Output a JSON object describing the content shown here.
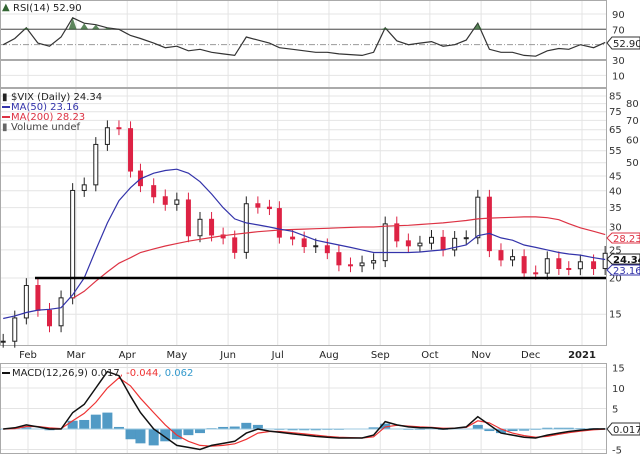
{
  "rsi_panel": {
    "label": "RSI(14)",
    "value": "52.90",
    "ticks": [
      90,
      70,
      30,
      10
    ],
    "overbought": 70,
    "oversold": 30
  },
  "price_panel": {
    "symbol": "$VIX (Daily)",
    "value": "24.34",
    "legend": [
      {
        "label": "MA(50) 23.16",
        "color": "#3333aa"
      },
      {
        "label": "MA(200) 28.23",
        "color": "#dd3344"
      },
      {
        "label": "Volume undef",
        "color": "#666666"
      }
    ],
    "ticks": [
      85,
      80,
      75,
      70,
      65,
      60,
      55,
      50,
      45,
      40,
      35,
      30,
      25,
      20,
      15
    ],
    "support_level": 20,
    "tags": {
      "ma200": "28.23",
      "close": "24.34",
      "ma50": "23.16"
    }
  },
  "macd_panel": {
    "label": "MACD(12,26,9)",
    "macd": "0.017",
    "signal": "-0.044",
    "hist": "0.062",
    "ticks": [
      15,
      10,
      5,
      -5
    ],
    "tag": "0.017"
  },
  "months": [
    {
      "label": "Feb",
      "date": "2020-02-01"
    },
    {
      "label": "Mar",
      "date": "2020-03-01"
    },
    {
      "label": "Apr",
      "date": "2020-04-01"
    },
    {
      "label": "May",
      "date": "2020-05-01"
    },
    {
      "label": "Jun",
      "date": "2020-06-01"
    },
    {
      "label": "Jul",
      "date": "2020-07-01"
    },
    {
      "label": "Aug",
      "date": "2020-08-01"
    },
    {
      "label": "Sep",
      "date": "2020-09-01"
    },
    {
      "label": "Oct",
      "date": "2020-10-01"
    },
    {
      "label": "Nov",
      "date": "2020-11-01"
    },
    {
      "label": "Dec",
      "date": "2020-12-01"
    },
    {
      "label": "2021",
      "date": "2021-01-01"
    }
  ],
  "colors": {
    "up": "#222222",
    "down": "#dd2244",
    "ma50": "#3333aa",
    "ma200": "#dd3344",
    "macd": "#111111",
    "signal": "#ee3333",
    "hist": "#3388bb",
    "rsi_fill": "#336633"
  },
  "chart_data": {
    "type": "line",
    "title": "$VIX (Daily)",
    "yscale": "log",
    "ylim": [
      11,
      88
    ],
    "grid": true,
    "x": [
      "2020-01-17",
      "2020-01-24",
      "2020-01-31",
      "2020-02-07",
      "2020-02-14",
      "2020-02-21",
      "2020-02-28",
      "2020-03-06",
      "2020-03-13",
      "2020-03-20",
      "2020-03-27",
      "2020-04-03",
      "2020-04-09",
      "2020-04-17",
      "2020-04-24",
      "2020-05-01",
      "2020-05-08",
      "2020-05-15",
      "2020-05-22",
      "2020-05-29",
      "2020-06-05",
      "2020-06-12",
      "2020-06-19",
      "2020-06-26",
      "2020-07-02",
      "2020-07-10",
      "2020-07-17",
      "2020-07-24",
      "2020-07-31",
      "2020-08-07",
      "2020-08-14",
      "2020-08-21",
      "2020-08-28",
      "2020-09-04",
      "2020-09-11",
      "2020-09-18",
      "2020-09-25",
      "2020-10-02",
      "2020-10-09",
      "2020-10-16",
      "2020-10-23",
      "2020-10-30",
      "2020-11-06",
      "2020-11-13",
      "2020-11-20",
      "2020-11-27",
      "2020-12-04",
      "2020-12-11",
      "2020-12-18",
      "2020-12-24",
      "2020-12-31",
      "2021-01-08",
      "2021-01-15"
    ],
    "close": [
      12.1,
      14.56,
      18.84,
      15.47,
      13.68,
      17.08,
      40.11,
      41.94,
      57.83,
      66.04,
      65.54,
      46.8,
      41.67,
      38.15,
      35.93,
      37.19,
      27.98,
      31.89,
      28.16,
      27.51,
      24.52,
      36.09,
      35.12,
      34.73,
      27.68,
      27.29,
      25.68,
      25.84,
      24.46,
      22.21,
      22.05,
      22.54,
      22.96,
      30.75,
      26.87,
      25.83,
      26.38,
      27.63,
      25.0,
      27.41,
      27.55,
      38.02,
      24.86,
      23.1,
      23.7,
      20.84,
      20.79,
      23.31,
      21.57,
      21.53,
      22.75,
      21.56,
      24.34
    ],
    "ma50": [
      14.5,
      14.8,
      15.2,
      15.5,
      15.6,
      15.8,
      17.5,
      20,
      25,
      31,
      37,
      41,
      44,
      46,
      47,
      47.5,
      46,
      43,
      39,
      35,
      32,
      31,
      30.5,
      30,
      29.5,
      29,
      28,
      27,
      26.5,
      26,
      25.5,
      25,
      24.5,
      24.5,
      24.5,
      24.5,
      24.6,
      24.8,
      25,
      25.5,
      26,
      28,
      28.5,
      27.5,
      27,
      26,
      25.5,
      25,
      24.5,
      24.2,
      24,
      23.5,
      23.16
    ],
    "ma200": [
      null,
      null,
      null,
      null,
      null,
      null,
      17,
      18,
      19.5,
      21,
      22.5,
      23.5,
      24.5,
      25.2,
      25.8,
      26.3,
      26.8,
      27.2,
      27.6,
      28,
      28.3,
      28.6,
      28.9,
      29.1,
      29.3,
      29.4,
      29.5,
      29.6,
      29.7,
      29.8,
      29.9,
      30,
      30,
      30.2,
      30.3,
      30.4,
      30.6,
      30.8,
      31,
      31.3,
      31.6,
      32,
      32.2,
      32.3,
      32.4,
      32.5,
      32.5,
      32.3,
      31.8,
      30.8,
      29.8,
      29,
      28.23
    ],
    "rsi": [
      50,
      58,
      72,
      52,
      48,
      60,
      85,
      78,
      76,
      72,
      70,
      62,
      58,
      52,
      46,
      48,
      42,
      44,
      40,
      38,
      36,
      60,
      56,
      52,
      46,
      44,
      42,
      40,
      40,
      38,
      37,
      36,
      40,
      72,
      55,
      50,
      52,
      54,
      48,
      50,
      56,
      78,
      44,
      40,
      40,
      36,
      35,
      42,
      45,
      44,
      50,
      46,
      52.9
    ],
    "macd": [
      0,
      0.3,
      1,
      0.5,
      0,
      0,
      4,
      6,
      10,
      14,
      13,
      8,
      4,
      0,
      -2,
      -4,
      -4.5,
      -5,
      -4,
      -3.5,
      -3,
      -1,
      0,
      -0.5,
      -0.8,
      -1.2,
      -1.5,
      -1.8,
      -2,
      -2.2,
      -2.2,
      -2.2,
      -1.5,
      1.8,
      1,
      0.5,
      0.3,
      0.3,
      0,
      0.2,
      0.5,
      3,
      1,
      -1,
      -1.5,
      -2,
      -2.2,
      -1.5,
      -1,
      -0.6,
      -0.3,
      0,
      0.017
    ],
    "signal": [
      0,
      0.1,
      0.6,
      0.6,
      0.3,
      0.1,
      2,
      3.8,
      6.5,
      10,
      12.5,
      10.5,
      7.5,
      4,
      1,
      -1.5,
      -3,
      -4,
      -4.2,
      -4,
      -3.6,
      -2.5,
      -1,
      -0.6,
      -0.6,
      -0.9,
      -1.2,
      -1.5,
      -1.8,
      -2,
      -2.1,
      -2.2,
      -1.9,
      0.5,
      0.9,
      0.7,
      0.5,
      0.4,
      0.2,
      0.2,
      0.4,
      2,
      1.5,
      0,
      -1,
      -1.6,
      -2,
      -1.8,
      -1.3,
      -0.9,
      -0.5,
      -0.2,
      -0.044
    ]
  }
}
